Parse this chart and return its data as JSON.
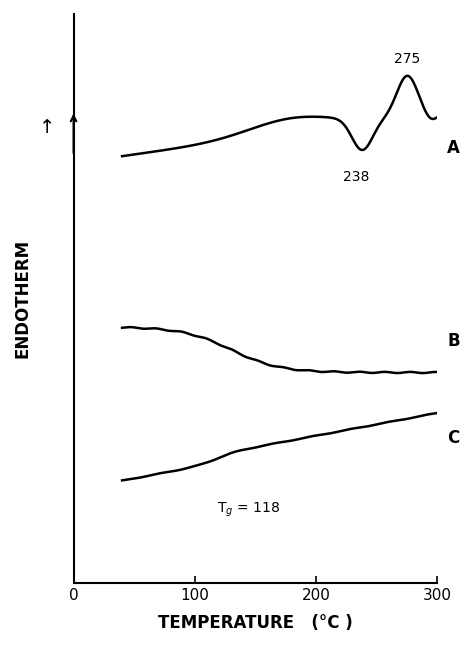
{
  "title": "",
  "xlabel": "TEMPERATURE   (°C )",
  "ylabel": "ENDOTHERM",
  "xlim": [
    0,
    300
  ],
  "ylim": [
    0,
    10
  ],
  "xticks": [
    0,
    100,
    200,
    300
  ],
  "background_color": "#ffffff",
  "line_color": "#000000",
  "label_A": "A",
  "label_B": "B",
  "label_C": "C",
  "annotation_238": "238",
  "annotation_275": "275",
  "annotation_tg": "T$_g$ = 118",
  "arrow_label": "↑",
  "curve_A_base": 7.5,
  "curve_B_base": 4.5,
  "curve_C_base": 1.8
}
